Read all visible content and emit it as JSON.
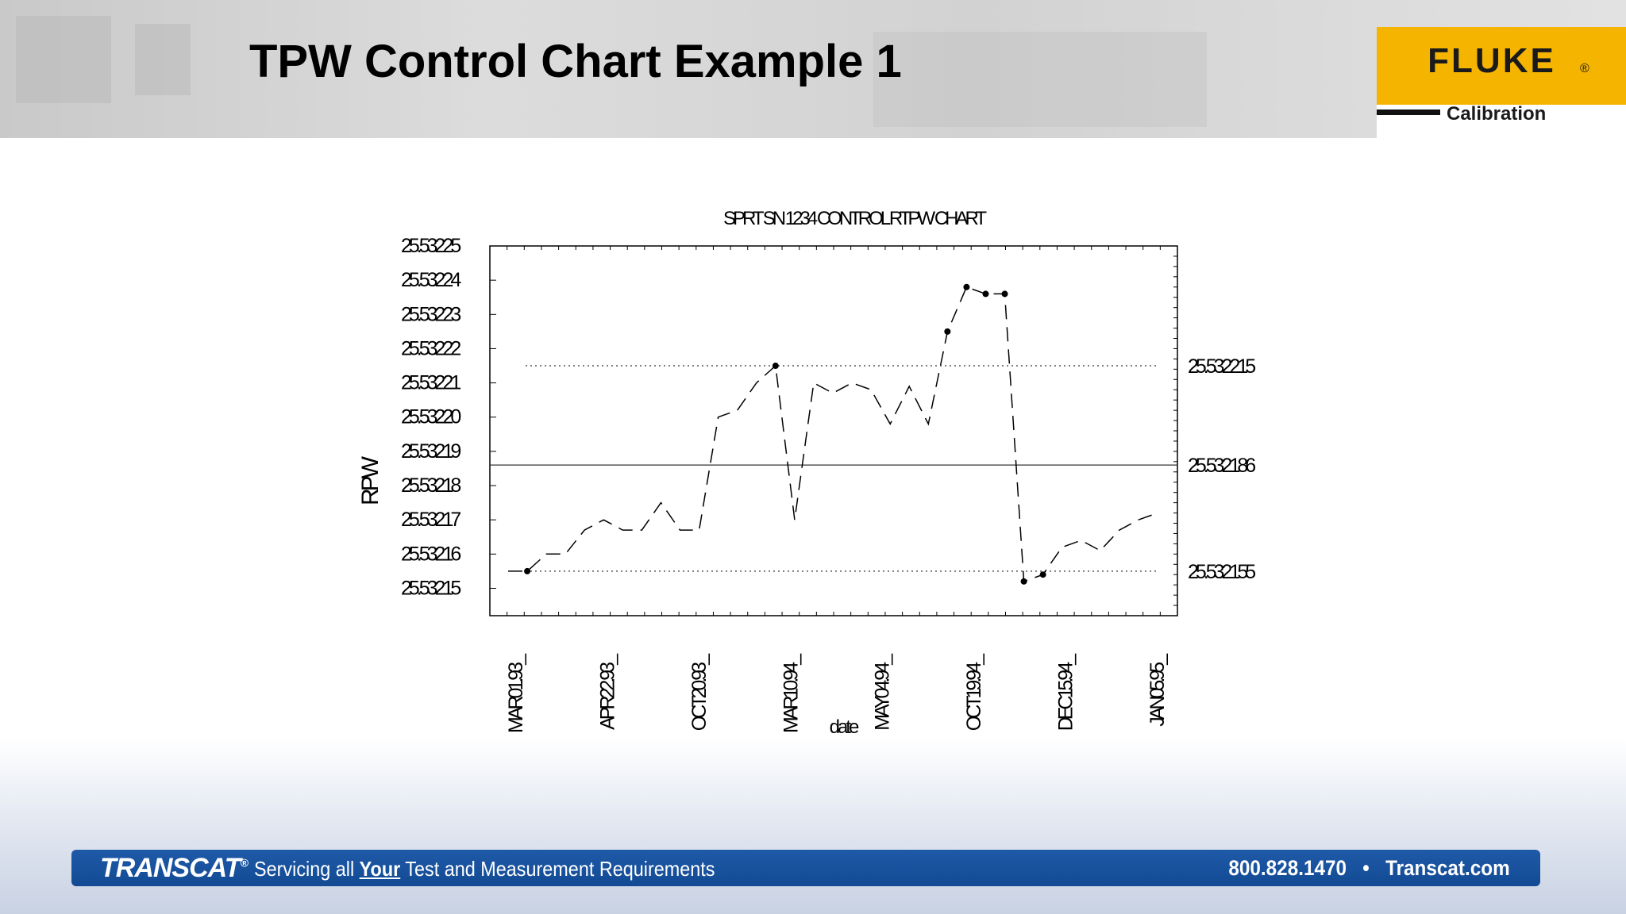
{
  "slide": {
    "title": "TPW Control Chart Example 1"
  },
  "logo": {
    "brand": "FLUKE",
    "reg": "®",
    "sub": "Calibration"
  },
  "footer": {
    "brand": "TRANSCAT",
    "brand_mark": "®",
    "tagline_pre": "Servicing all ",
    "tagline_em": "Your",
    "tagline_post": " Test and Measurement Requirements",
    "phone": "800.828.1470",
    "separator": "•",
    "website": "Transcat.com"
  },
  "colors": {
    "logo_yellow": "#f5b400",
    "footer_blue": "#124a93"
  },
  "chart_data": {
    "type": "line",
    "title": "SPRT SN 1234 CONTROL RTPW CHART",
    "xlabel": "date",
    "ylabel": "RPW",
    "y_ticks": [
      "25.53225",
      "25.53224",
      "25.53223",
      "25.53222",
      "25.53221",
      "25.53220",
      "25.53219",
      "25.53218",
      "25.53217",
      "25.53216",
      "25.53215"
    ],
    "ylim": [
      25.532142,
      25.53225
    ],
    "x_tick_labels": [
      "MAR01.93",
      "APR22.93",
      "OCT20.93",
      "MAR10.94",
      "MAY04.94",
      "OCT19.94",
      "DEC15.94",
      "JAN05.95"
    ],
    "control_limits": {
      "upper": 25.532215,
      "center": 25.532186,
      "lower": 25.532155,
      "upper_label": "25.532215",
      "center_label": "25.532186",
      "lower_label": "25.532155"
    },
    "grid": false,
    "series": [
      {
        "values": [
          25.532155,
          25.532155,
          25.53216,
          25.53216,
          25.532167,
          25.53217,
          25.532167,
          25.532167,
          25.532175,
          25.532167,
          25.532167,
          25.5322,
          25.532202,
          25.53221,
          25.532215,
          25.53217,
          25.53221,
          25.532207,
          25.53221,
          25.532208,
          25.532198,
          25.532209,
          25.532198,
          25.532225,
          25.532238,
          25.532236,
          25.532236,
          25.532152,
          25.532154,
          25.532162,
          25.532164,
          25.532161,
          25.532167,
          25.53217,
          25.532172
        ],
        "flagged": [
          1,
          14,
          23,
          24,
          25,
          26,
          27,
          28
        ]
      }
    ]
  }
}
